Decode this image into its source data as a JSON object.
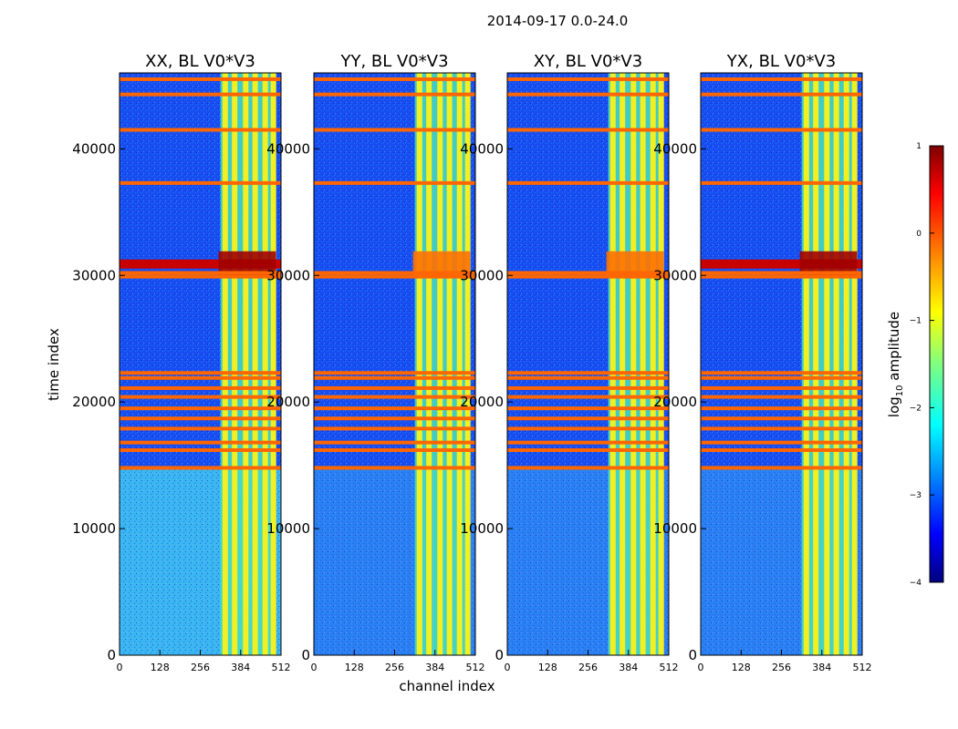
{
  "chart_data": {
    "type": "heatmap",
    "title": "2014-09-17 0.0-24.0",
    "xlabel": "channel index",
    "ylabel": "time index",
    "xlim": [
      0,
      512
    ],
    "ylim": [
      0,
      46000
    ],
    "xticks": [
      "0",
      "128",
      "256",
      "384",
      "512"
    ],
    "yticks": [
      "0",
      "10000",
      "20000",
      "30000",
      "40000"
    ],
    "panels": [
      {
        "title": "XX, BL V0*V3"
      },
      {
        "title": "YY, BL V0*V3"
      },
      {
        "title": "XY, BL V0*V3"
      },
      {
        "title": "YX, BL V0*V3"
      }
    ],
    "colorbar": {
      "label": "log10 amplitude",
      "label_main": "log",
      "label_sub": "10",
      "label_rest": " amplitude",
      "range": [
        -4,
        1
      ],
      "ticks": [
        "1",
        "0",
        "−1",
        "−2",
        "−3",
        "−4"
      ],
      "colormap": "jet"
    },
    "flagged_rows": [
      45500,
      44300,
      41500,
      37300,
      30200,
      29900,
      22300,
      21900,
      21100,
      20400,
      19500,
      18700,
      17900,
      16800,
      16200,
      14800
    ],
    "strong_rfi_time": 30900,
    "band_channels": [
      320,
      490
    ],
    "band_columns": [
      335,
      365,
      400,
      430,
      462,
      488
    ]
  }
}
